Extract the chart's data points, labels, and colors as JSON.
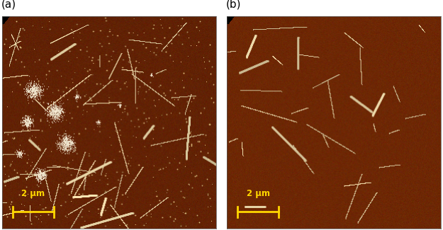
{
  "fig_width": 6.25,
  "fig_height": 3.25,
  "dpi": 100,
  "label_a": "(a)",
  "label_b": "(b)",
  "label_fontsize": 11,
  "scale_text": "2 μm",
  "scale_color": "#FFD700",
  "bg_color_a": [
    100,
    35,
    5
  ],
  "bg_color_b": [
    110,
    40,
    5
  ],
  "seed_a": 42,
  "seed_b": 99
}
